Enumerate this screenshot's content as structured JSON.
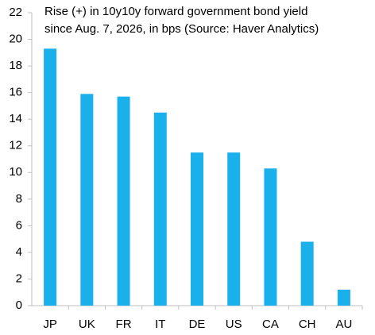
{
  "chart_data": {
    "type": "bar",
    "title": [
      "Rise (+) in 10y10y forward government bond yield",
      "since Aug. 7, 2026, in bps (Source: Haver Analytics)"
    ],
    "categories": [
      "JP",
      "UK",
      "FR",
      "IT",
      "DE",
      "US",
      "CA",
      "CH",
      "AU"
    ],
    "values": [
      19.3,
      15.9,
      15.7,
      14.5,
      11.5,
      11.5,
      10.3,
      4.8,
      1.2
    ],
    "color": "#1ab0ec",
    "ylim": [
      0,
      22
    ],
    "yticks": [
      0,
      2,
      4,
      6,
      8,
      10,
      12,
      14,
      16,
      18,
      20,
      22
    ],
    "grid": false
  }
}
